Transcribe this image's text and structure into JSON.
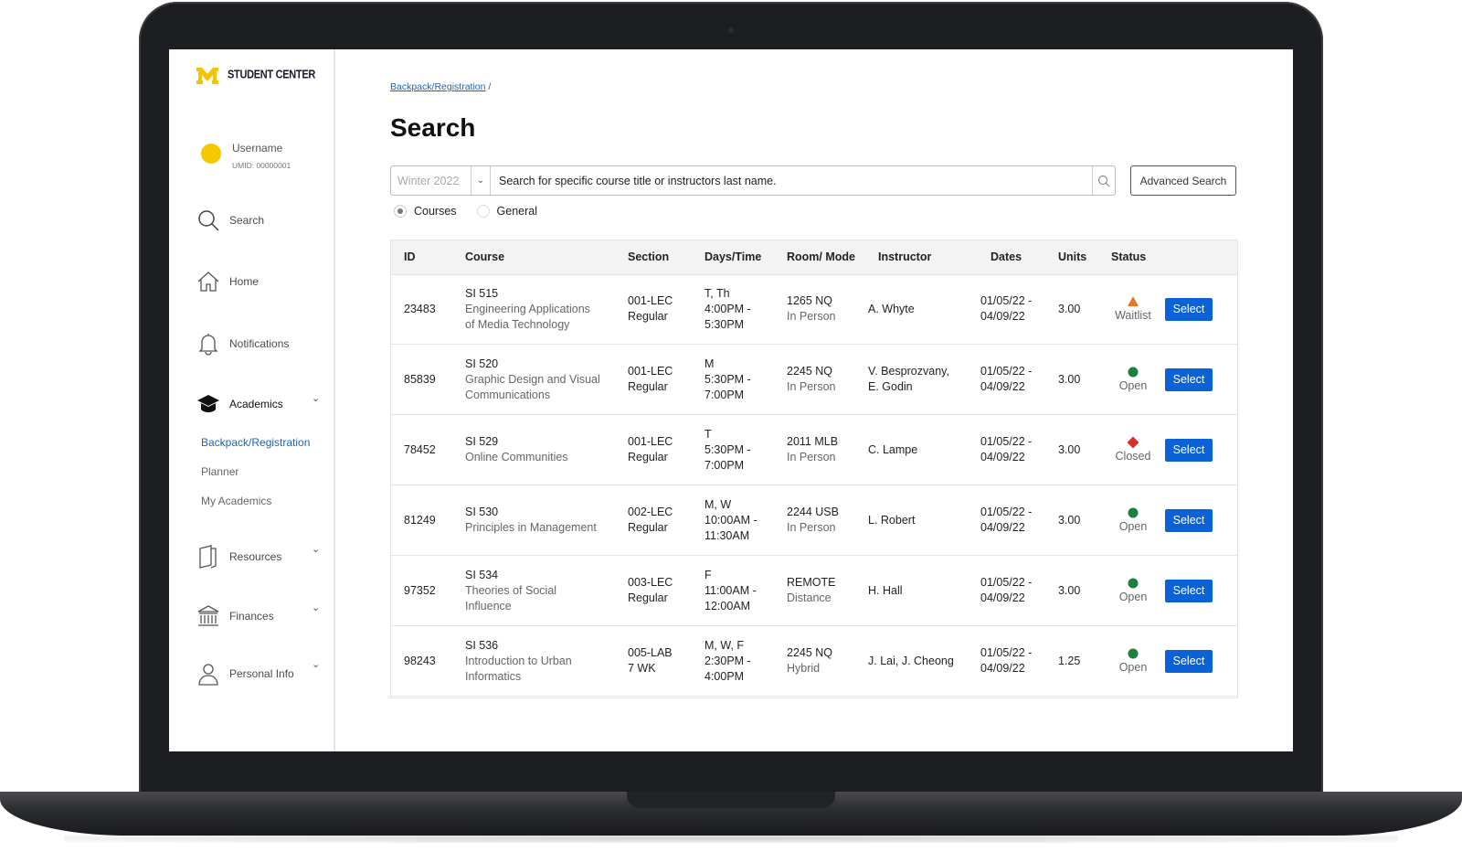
{
  "sidebar": {
    "brand": "STUDENT CENTER",
    "username": "Username",
    "umid": "UMID: 00000001",
    "nav": [
      "Search",
      "Home",
      "Notifications",
      "Academics"
    ],
    "academics_sub": [
      "Backpack/Registration",
      "Planner",
      "My Academics"
    ],
    "nav2": [
      "Resources",
      "Finances",
      "Personal Info"
    ]
  },
  "breadcrumb": {
    "link": "Backpack/Registration",
    "separator": "/"
  },
  "title": "Search",
  "search": {
    "term": "Winter 2022",
    "placeholder": "Search for specific course title or instructors last name.",
    "advanced": "Advanced Search",
    "options": [
      "Courses",
      "General"
    ]
  },
  "table": {
    "headers": [
      "ID",
      "Course",
      "Section",
      "Days/Time",
      "Room/ Mode",
      "Instructor",
      "Dates",
      "Units",
      "Status"
    ],
    "rows": [
      {
        "id": "23483",
        "code": "SI 515",
        "name": "Engineering Applications of Media Technology",
        "section": "001-LEC",
        "section_type": "Regular",
        "days": "T, Th",
        "time": "4:00PM - 5:30PM",
        "room": "1265 NQ",
        "mode": "In Person",
        "instructor": "A. Whyte",
        "dates": "01/05/22 - 04/09/22",
        "units": "3.00",
        "status": "Waitlist",
        "icon": "triangle",
        "color": "#e8762b",
        "action": "Select"
      },
      {
        "id": "85839",
        "code": "SI 520",
        "name": "Graphic Design and Visual Communications",
        "section": "001-LEC",
        "section_type": "Regular",
        "days": "M",
        "time": "5:30PM - 7:00PM",
        "room": "2245 NQ",
        "mode": "In Person",
        "instructor": "V. Besprozvany, E. Godin",
        "dates": "01/05/22 - 04/09/22",
        "units": "3.00",
        "status": "Open",
        "icon": "circle",
        "color": "#1e7f3c",
        "action": "Select"
      },
      {
        "id": "78452",
        "code": "SI 529",
        "name": "Online Communities",
        "section": "001-LEC",
        "section_type": "Regular",
        "days": "T",
        "time": "5:30PM - 7:00PM",
        "room": "2011 MLB",
        "mode": "In Person",
        "instructor": "C. Lampe",
        "dates": "01/05/22 - 04/09/22",
        "units": "3.00",
        "status": "Closed",
        "icon": "diamond",
        "color": "#d3302f",
        "action": "Select"
      },
      {
        "id": "81249",
        "code": "SI 530",
        "name": "Principles in Management",
        "section": "002-LEC",
        "section_type": "Regular",
        "days": "M, W",
        "time": "10:00AM - 11:30AM",
        "room": "2244 USB",
        "mode": "In Person",
        "instructor": "L. Robert",
        "dates": "01/05/22 - 04/09/22",
        "units": "3.00",
        "status": "Open",
        "icon": "circle",
        "color": "#1e7f3c",
        "action": "Select"
      },
      {
        "id": "97352",
        "code": "SI 534",
        "name": "Theories of Social Influence",
        "section": "003-LEC",
        "section_type": "Regular",
        "days": "F",
        "time": "11:00AM - 12:00AM",
        "room": "REMOTE",
        "mode": "Distance",
        "instructor": "H. Hall",
        "dates": "01/05/22 - 04/09/22",
        "units": "3.00",
        "status": "Open",
        "icon": "circle",
        "color": "#1e7f3c",
        "action": "Select"
      },
      {
        "id": "98243",
        "code": "SI 536",
        "name": "Introduction to Urban Informatics",
        "section": "005-LAB",
        "section_type": "7 WK",
        "days": "M, W, F",
        "time": "2:30PM - 4:00PM",
        "room": "2245 NQ",
        "mode": "Hybrid",
        "instructor": "J. Lai, J. Cheong",
        "dates": "01/05/22 - 04/09/22",
        "units": "1.25",
        "status": "Open",
        "icon": "circle",
        "color": "#1e7f3c",
        "action": "Select"
      }
    ]
  }
}
